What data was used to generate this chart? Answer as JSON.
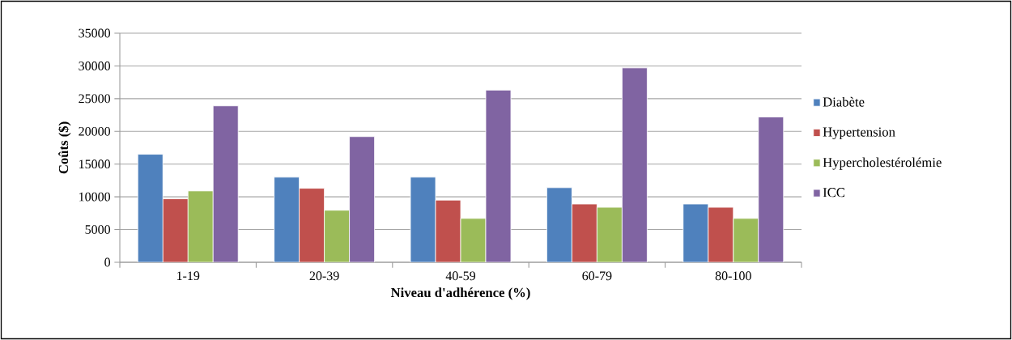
{
  "chart_data": {
    "type": "bar",
    "xlabel": "Niveau d'adhérence (%)",
    "ylabel": "Coûts ($)",
    "categories": [
      "1-19",
      "20-39",
      "40-59",
      "60-79",
      "80-100"
    ],
    "series": [
      {
        "name": "Diabète",
        "color": "#4f81bd",
        "values": [
          16500,
          13000,
          13000,
          11400,
          8900
        ]
      },
      {
        "name": "Hypertension",
        "color": "#c0504d",
        "values": [
          9700,
          11300,
          9500,
          8900,
          8400
        ]
      },
      {
        "name": "Hypercholestérolémie",
        "color": "#9bbb59",
        "values": [
          10900,
          7950,
          6700,
          8400,
          6700
        ]
      },
      {
        "name": "ICC",
        "color": "#8064a2",
        "values": [
          23900,
          19200,
          26300,
          29700,
          22200
        ]
      }
    ],
    "ylim": [
      0,
      35000
    ],
    "yticks": [
      0,
      5000,
      10000,
      15000,
      20000,
      25000,
      30000,
      35000
    ],
    "grid": "y",
    "legend": "right"
  }
}
